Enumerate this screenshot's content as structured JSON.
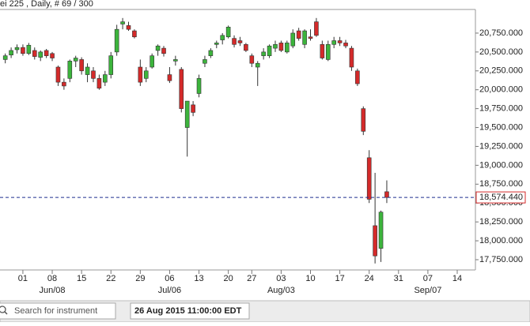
{
  "chart_data": {
    "type": "candlestick",
    "title": "ei 225 , Daily, # 69 / 300",
    "up_color": "#3cb43c",
    "down_color": "#d42a2a",
    "x": [
      -3,
      -2,
      -1,
      0,
      1,
      2,
      3,
      4,
      5,
      6,
      7,
      8,
      9,
      10,
      11,
      12,
      13,
      14,
      15,
      16,
      17,
      18,
      19,
      20,
      21,
      22,
      23,
      24,
      25,
      26,
      27,
      28,
      29,
      30,
      31,
      32,
      33,
      34,
      35,
      36,
      37,
      38,
      39,
      40,
      41,
      42,
      43,
      44,
      45,
      46,
      47,
      48,
      49,
      50,
      51,
      52,
      53,
      54,
      55,
      56,
      57,
      58,
      59,
      60,
      61,
      62
    ],
    "open": [
      20400,
      20460,
      20530,
      20560,
      20480,
      20520,
      20430,
      20520,
      20480,
      20300,
      20100,
      20150,
      20380,
      20400,
      20200,
      20250,
      20150,
      20100,
      20200,
      20500,
      20870,
      20850,
      20780,
      20300,
      20150,
      20300,
      20520,
      20550,
      20200,
      20380,
      20270,
      19500,
      19800,
      19950,
      20350,
      20450,
      20600,
      20660,
      20700,
      20680,
      20650,
      20600,
      20450,
      20300,
      20450,
      20450,
      20550,
      20620,
      20500,
      20580,
      20780,
      20600,
      20700,
      20900,
      20600,
      20400,
      20600,
      20650,
      20620,
      20550,
      20250,
      19750,
      19100,
      18200,
      17900,
      18650
    ],
    "high": [
      20480,
      20560,
      20600,
      20600,
      20620,
      20560,
      20520,
      20540,
      20500,
      20320,
      20150,
      20400,
      20450,
      20430,
      20350,
      20300,
      20200,
      20250,
      20500,
      20860,
      20950,
      20900,
      20800,
      20400,
      20300,
      20480,
      20600,
      20580,
      20300,
      20450,
      20300,
      19850,
      19850,
      20200,
      20450,
      20550,
      20650,
      20750,
      20850,
      20720,
      20700,
      20620,
      20480,
      20380,
      20550,
      20600,
      20650,
      20650,
      20650,
      20800,
      20820,
      20800,
      20800,
      20950,
      20650,
      20650,
      20700,
      20700,
      20660,
      20580,
      20280,
      19780,
      19200,
      18900,
      18400,
      18800
    ],
    "low": [
      20350,
      20420,
      20480,
      20450,
      20460,
      20400,
      20380,
      20420,
      20380,
      20050,
      20000,
      20100,
      20300,
      20200,
      20100,
      20100,
      20000,
      20050,
      20150,
      20450,
      20800,
      20780,
      20680,
      20050,
      20100,
      20280,
      20450,
      20440,
      20090,
      20320,
      19700,
      19115,
      19650,
      19900,
      20300,
      20420,
      20550,
      20600,
      20680,
      20560,
      20580,
      20500,
      20300,
      20050,
      20400,
      20420,
      20500,
      20500,
      20480,
      20550,
      20650,
      20550,
      20650,
      20700,
      20400,
      20380,
      20550,
      20580,
      20550,
      20250,
      20050,
      19400,
      18500,
      17700,
      17720,
      18500
    ],
    "close": [
      20450,
      20520,
      20560,
      20480,
      20590,
      20440,
      20500,
      20450,
      20420,
      20100,
      20050,
      20380,
      20420,
      20250,
      20300,
      20150,
      20020,
      20200,
      20450,
      20800,
      20900,
      20800,
      20700,
      20100,
      20250,
      20450,
      20580,
      20480,
      20120,
      20400,
      19750,
      19850,
      19700,
      20150,
      20400,
      20520,
      20620,
      20720,
      20830,
      20600,
      20620,
      20520,
      20350,
      20350,
      20500,
      20580,
      20600,
      20520,
      20620,
      20750,
      20680,
      20780,
      20680,
      20720,
      20420,
      20600,
      20650,
      20620,
      20580,
      20300,
      20080,
      19450,
      18550,
      17800,
      18380,
      18574.44
    ],
    "xlim": [
      -3.9,
      77.1
    ],
    "xticks": [
      {
        "value": 0,
        "label": "01"
      },
      {
        "value": 5,
        "label": "08"
      },
      {
        "value": 10,
        "label": "15"
      },
      {
        "value": 15,
        "label": "22"
      },
      {
        "value": 20,
        "label": "29"
      },
      {
        "value": 25,
        "label": "06"
      },
      {
        "value": 30,
        "label": "13"
      },
      {
        "value": 35,
        "label": "20"
      },
      {
        "value": 39,
        "label": "27"
      },
      {
        "value": 44,
        "label": "03"
      },
      {
        "value": 49,
        "label": "10"
      },
      {
        "value": 54,
        "label": "17"
      },
      {
        "value": 59,
        "label": "24"
      },
      {
        "value": 64,
        "label": "31"
      },
      {
        "value": 69,
        "label": "07"
      },
      {
        "value": 74,
        "label": "14"
      }
    ],
    "month_ticks": [
      {
        "value": 5,
        "label": "Jun/08"
      },
      {
        "value": 25,
        "label": "Jul/06"
      },
      {
        "value": 44,
        "label": "Aug/03"
      },
      {
        "value": 69,
        "label": "Sep/07"
      }
    ],
    "ylim": [
      17614,
      21063
    ],
    "yticks": [
      {
        "value": 17750,
        "label": "17,750.000"
      },
      {
        "value": 18000,
        "label": "18,000.000"
      },
      {
        "value": 18250,
        "label": "18,250.000"
      },
      {
        "value": 18500,
        "label": "18,500.000"
      },
      {
        "value": 18750,
        "label": "18,750.000"
      },
      {
        "value": 19000,
        "label": "19,000.000"
      },
      {
        "value": 19250,
        "label": "19,250.000"
      },
      {
        "value": 19500,
        "label": "19,500.000"
      },
      {
        "value": 19750,
        "label": "19,750.000"
      },
      {
        "value": 20000,
        "label": "20,000.000"
      },
      {
        "value": 20250,
        "label": "20,250.000"
      },
      {
        "value": 20500,
        "label": "20,500.000"
      },
      {
        "value": 20750,
        "label": "20,750.000"
      }
    ],
    "last_price": {
      "value": 18574.44,
      "label": "18,574.440"
    }
  },
  "footer": {
    "search_placeholder": "Search for instrument",
    "timestamp": "26 Aug 2015 11:00:00 EDT"
  }
}
